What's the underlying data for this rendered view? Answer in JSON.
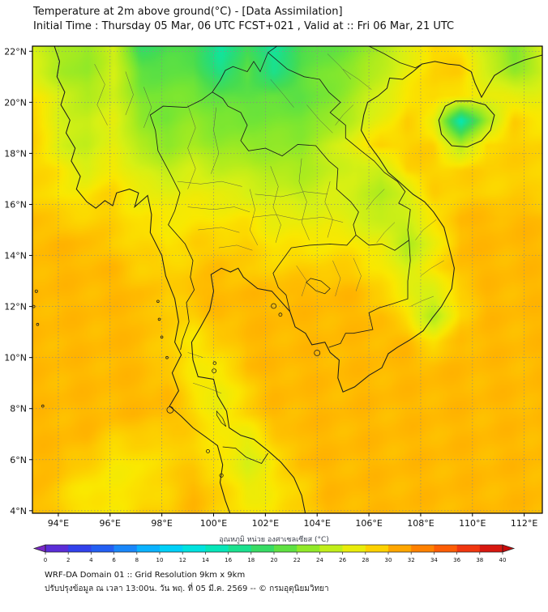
{
  "header": {
    "title_line1": "Temperature at 2m above ground(°C) - [Data Assimilation]",
    "title_line2": "Initial Time : Thursday 05 Mar, 06 UTC FCST+021 , Valid at :: Fri 06 Mar, 21 UTC"
  },
  "axes": {
    "lon_ticks": [
      {
        "v": 94,
        "label": "94°E"
      },
      {
        "v": 96,
        "label": "96°E"
      },
      {
        "v": 98,
        "label": "98°E"
      },
      {
        "v": 100,
        "label": "100°E"
      },
      {
        "v": 102,
        "label": "102°E"
      },
      {
        "v": 104,
        "label": "104°E"
      },
      {
        "v": 106,
        "label": "106°E"
      },
      {
        "v": 108,
        "label": "108°E"
      },
      {
        "v": 110,
        "label": "110°E"
      },
      {
        "v": 112,
        "label": "112°E"
      }
    ],
    "lat_ticks": [
      {
        "v": 4,
        "label": "4°N"
      },
      {
        "v": 6,
        "label": "6°N"
      },
      {
        "v": 8,
        "label": "8°N"
      },
      {
        "v": 10,
        "label": "10°N"
      },
      {
        "v": 12,
        "label": "12°N"
      },
      {
        "v": 14,
        "label": "14°N"
      },
      {
        "v": 16,
        "label": "16°N"
      },
      {
        "v": 18,
        "label": "18°N"
      },
      {
        "v": 20,
        "label": "20°N"
      },
      {
        "v": 22,
        "label": "22°N"
      }
    ]
  },
  "colorbar": {
    "label": "อุณหภูมิ หน่วย องศาเซลเซียส (°C)",
    "min": 0,
    "max": 40,
    "tick_values": [
      0,
      2,
      4,
      6,
      8,
      10,
      12,
      14,
      16,
      18,
      20,
      22,
      24,
      26,
      28,
      30,
      32,
      34,
      36,
      38,
      40
    ]
  },
  "footer": {
    "line1": "WRF-DA Domain 01 :: Grid Resolution 9km x 9km",
    "line2": "ปรับปรุงข้อมูล ณ เวลา 13:00น. วัน พฤ. ที่ 05 มี.ค. 2569 -- © กรมอุตุนิยมวิทยา"
  },
  "chart_data": {
    "type": "heatmap",
    "title": "Temperature at 2m above ground (°C), WRF-DA forecast valid Fri 06 Mar 21 UTC",
    "units": "°C",
    "lon_range": [
      93.0,
      112.7
    ],
    "lat_range": [
      3.9,
      22.2
    ],
    "value_range": [
      0,
      40
    ],
    "grid_order": "rows north to south, columns west to east, evenly spaced over lon_range/lat_range",
    "colormap_stops": [
      [
        0,
        "#7a28c8"
      ],
      [
        2,
        "#3c32e6"
      ],
      [
        4,
        "#2850f0"
      ],
      [
        6,
        "#1e6ef5"
      ],
      [
        8,
        "#14a0ff"
      ],
      [
        10,
        "#00c3ff"
      ],
      [
        12,
        "#00ddf0"
      ],
      [
        14,
        "#00e6cd"
      ],
      [
        16,
        "#0ce6a5"
      ],
      [
        18,
        "#28dc78"
      ],
      [
        20,
        "#46dc50"
      ],
      [
        22,
        "#78e632"
      ],
      [
        24,
        "#aaeb1e"
      ],
      [
        26,
        "#d7f014"
      ],
      [
        28,
        "#fae800"
      ],
      [
        30,
        "#ffb900"
      ],
      [
        32,
        "#ff9300"
      ],
      [
        34,
        "#ff6e00"
      ],
      [
        36,
        "#fa4b0a"
      ],
      [
        38,
        "#e62314"
      ],
      [
        40,
        "#c80a0a"
      ]
    ],
    "values_north_to_south": [
      [
        26,
        24,
        23,
        26,
        19,
        20,
        20,
        16,
        20,
        16,
        20,
        21,
        22,
        24,
        26,
        29,
        28,
        25,
        22,
        26
      ],
      [
        26,
        24,
        23,
        26,
        21,
        21,
        21,
        17,
        21,
        17,
        21,
        22,
        23,
        25,
        27,
        29,
        29,
        26,
        23,
        25
      ],
      [
        28,
        26,
        24,
        26,
        22,
        22,
        22,
        21,
        21,
        21,
        21,
        22,
        24,
        26,
        28,
        29,
        28,
        27,
        27,
        27
      ],
      [
        29,
        26,
        25,
        27,
        23,
        22,
        23,
        22,
        22,
        22,
        22,
        23,
        25,
        27,
        29,
        27,
        15,
        24,
        29,
        28
      ],
      [
        29,
        26,
        25,
        27,
        24,
        23,
        24,
        23,
        23,
        23,
        23,
        25,
        27,
        29,
        29,
        29,
        24,
        29,
        29,
        29
      ],
      [
        29,
        28,
        26,
        28,
        26,
        25,
        26,
        25,
        25,
        24,
        24,
        25,
        26,
        25,
        29,
        29,
        29,
        29,
        29,
        29
      ],
      [
        29,
        28,
        28,
        29,
        27,
        27,
        27,
        27,
        26,
        26,
        25,
        26,
        26,
        24,
        26,
        29,
        29,
        29,
        29,
        29
      ],
      [
        30,
        29,
        29,
        29,
        28,
        28,
        28,
        28,
        28,
        27,
        27,
        27,
        26,
        25,
        26,
        28,
        30,
        30,
        30,
        30
      ],
      [
        30,
        30,
        30,
        29,
        29,
        28,
        29,
        29,
        29,
        28,
        28,
        28,
        28,
        27,
        24,
        27,
        30,
        30,
        30,
        30
      ],
      [
        30,
        30,
        30,
        30,
        29,
        29,
        29,
        30,
        29,
        29,
        29,
        29,
        29,
        28,
        26,
        28,
        30,
        30,
        30,
        30
      ],
      [
        30,
        30,
        30,
        30,
        30,
        29,
        30,
        30,
        30,
        30,
        30,
        30,
        30,
        29,
        27,
        26,
        29,
        30,
        30,
        30
      ],
      [
        30,
        30,
        30,
        30,
        30,
        29,
        29,
        30,
        30,
        30,
        30,
        30,
        30,
        30,
        28,
        24,
        29,
        30,
        30,
        30
      ],
      [
        30,
        30,
        30,
        30,
        30,
        29,
        28,
        29,
        30,
        30,
        30,
        30,
        30,
        30,
        30,
        28,
        30,
        30,
        30,
        30
      ],
      [
        30,
        30,
        30,
        30,
        30,
        29,
        28,
        28,
        30,
        30,
        30,
        30,
        30,
        30,
        30,
        30,
        30,
        30,
        30,
        30
      ],
      [
        30,
        30,
        30,
        30,
        30,
        30,
        28,
        27,
        29,
        30,
        30,
        30,
        30,
        30,
        30,
        30,
        30,
        30,
        30,
        30
      ],
      [
        30,
        30,
        30,
        30,
        30,
        30,
        29,
        27,
        29,
        30,
        30,
        30,
        30,
        30,
        30,
        30,
        30,
        30,
        30,
        30
      ],
      [
        30,
        30,
        30,
        29,
        29,
        29,
        29,
        28,
        27,
        29,
        30,
        30,
        30,
        30,
        30,
        30,
        30,
        30,
        30,
        30
      ],
      [
        30,
        30,
        29,
        28,
        28,
        29,
        29,
        28,
        26,
        28,
        30,
        30,
        30,
        30,
        30,
        30,
        30,
        30,
        30,
        30
      ],
      [
        30,
        29,
        28,
        28,
        28,
        29,
        30,
        29,
        27,
        28,
        29,
        30,
        30,
        30,
        30,
        30,
        30,
        30,
        30,
        30
      ],
      [
        30,
        29,
        28,
        28,
        29,
        29,
        30,
        29,
        28,
        28,
        29,
        30,
        30,
        30,
        30,
        30,
        30,
        30,
        30,
        30
      ]
    ]
  }
}
